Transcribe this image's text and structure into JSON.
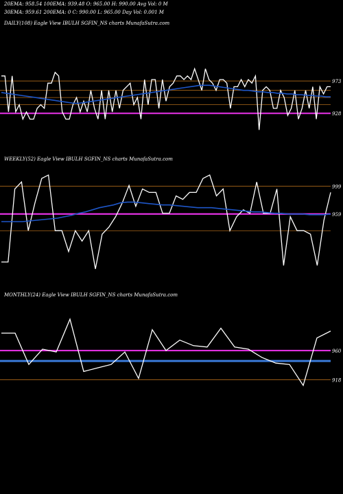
{
  "header": {
    "line1": "20EMA: 958.54      100EMA: 939.48      O: 965.00      H: 990.00      Avg Vol: 0  M",
    "line2": "30EMA: 959.61      200EMA: 0             C: 990.00      L: 965.00      Day Vol: 0.001  M"
  },
  "colors": {
    "background": "#000000",
    "price": "#ffffff",
    "ema": "#1e56c8",
    "magenta": "#e030e0",
    "blueband": "#3a7ad8",
    "grid": "#b06a1a",
    "thin": "#c8b89a"
  },
  "chart_data": [
    {
      "type": "line",
      "title": "DAILY(108) Eagle  View  IBULH              SGFIN_NS charts MunafaSutra.com",
      "yticks": [
        973,
        928
      ],
      "ylim": [
        890,
        995
      ],
      "series": [
        {
          "values": [
            980,
            980,
            930,
            980,
            930,
            940,
            920,
            930,
            920,
            920,
            935,
            940,
            935,
            970,
            970,
            985,
            980,
            930,
            920,
            920,
            940,
            950,
            930,
            945,
            930,
            960,
            935,
            920,
            960,
            920,
            960,
            930,
            960,
            935,
            960,
            965,
            970,
            940,
            950,
            920,
            975,
            940,
            975,
            975,
            935,
            975,
            945,
            965,
            970,
            980,
            980,
            975,
            980,
            975,
            990,
            975,
            960,
            990,
            975,
            970,
            960,
            975,
            975,
            970,
            935,
            965,
            965,
            975,
            965,
            975,
            970,
            980,
            905,
            960,
            965,
            960,
            935,
            935,
            960,
            950,
            925,
            935,
            960,
            920,
            935,
            960,
            935,
            965,
            920,
            965,
            955,
            965,
            965
          ]
        },
        {
          "values": [
            957,
            956,
            955,
            954,
            953,
            952,
            951,
            950,
            949,
            948,
            947,
            946,
            945,
            944,
            943,
            942,
            942,
            943,
            944,
            945,
            946,
            947,
            948,
            949,
            950,
            951,
            952,
            953,
            954,
            955,
            956,
            957,
            958,
            959,
            960,
            961,
            962,
            963,
            964,
            965,
            966,
            967,
            967,
            967,
            966,
            965,
            964,
            963,
            962,
            961,
            960,
            960,
            959,
            958,
            958,
            957,
            957,
            956,
            956,
            955,
            955,
            954,
            954,
            953,
            953,
            952,
            952,
            951,
            951
          ]
        }
      ],
      "hlines": [
        928,
        960,
        973,
        940,
        950
      ]
    },
    {
      "type": "line",
      "title": "WEEKLY(52) Eagle  View  IBULH              SGFIN_NS charts MunafaSutra.com",
      "yticks": [
        999,
        959
      ],
      "ylim": [
        880,
        1020
      ],
      "series": [
        {
          "values": [
            890,
            890,
            995,
            1005,
            935,
            975,
            1010,
            1015,
            935,
            935,
            905,
            935,
            920,
            935,
            880,
            930,
            940,
            955,
            975,
            1000,
            970,
            995,
            990,
            990,
            960,
            960,
            985,
            980,
            990,
            990,
            1010,
            1015,
            985,
            995,
            935,
            955,
            965,
            960,
            1005,
            960,
            960,
            995,
            885,
            955,
            935,
            935,
            930,
            885,
            950,
            990
          ]
        },
        {
          "values": [
            948,
            948,
            948,
            948,
            949,
            950,
            951,
            952,
            953,
            955,
            957,
            960,
            962,
            965,
            968,
            970,
            972,
            975,
            976,
            976,
            975,
            974,
            973,
            972,
            972,
            971,
            970,
            969,
            968,
            968,
            968,
            967,
            966,
            965,
            964,
            963,
            962,
            962,
            961,
            960,
            960,
            959,
            959,
            959,
            958,
            958,
            958,
            959
          ]
        }
      ],
      "hlines": [
        959,
        999,
        935
      ]
    },
    {
      "type": "line",
      "title": "MONTHLY(24) Eagle  View  IBULH              SGFIN_NS charts MunafaSutra.com",
      "yticks": [
        960,
        918
      ],
      "ylim": [
        890,
        1020
      ],
      "series": [
        {
          "values": [
            985,
            985,
            940,
            962,
            958,
            1005,
            930,
            935,
            940,
            958,
            920,
            990,
            960,
            975,
            967,
            965,
            992,
            965,
            962,
            950,
            942,
            940,
            910,
            978,
            988
          ]
        }
      ],
      "hlines": [
        960,
        918
      ],
      "band": 945
    }
  ]
}
